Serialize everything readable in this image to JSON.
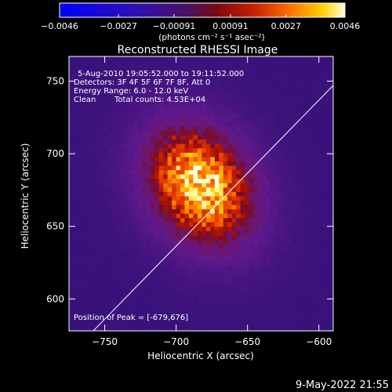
{
  "chart_data": {
    "type": "heatmap",
    "title": "Reconstructed RHESSI Image",
    "xlabel": "Heliocentric X (arcsec)",
    "ylabel": "Heliocentric Y (arcsec)",
    "xlim": [
      -775,
      -590
    ],
    "ylim": [
      578,
      767
    ],
    "x_ticks": [
      -750,
      -700,
      -650,
      -600
    ],
    "y_ticks": [
      600,
      650,
      700,
      750
    ],
    "x_tick_labels": [
      "−750",
      "−700",
      "−650",
      "−600"
    ],
    "y_tick_labels": [
      "600",
      "650",
      "700",
      "750"
    ],
    "colorbar": {
      "min": -0.0046,
      "max": 0.0046,
      "ticks": [
        -0.0046,
        -0.0027,
        -0.00091,
        0.00091,
        0.0027,
        0.0046
      ],
      "tick_labels": [
        "−0.0046",
        "−0.0027",
        "−0.00091",
        "0.00091",
        "0.0027",
        "0.0046"
      ],
      "unit_label": "(photons cm⁻² s⁻¹ asec⁻²)"
    },
    "annotations": {
      "time": "5-Aug-2010 19:05:52.000 to 19:11:52.000",
      "detectors": "Detectors: 3F 4F 5F 6F 7F 8F, Att 0",
      "energy": "Energy Range: 6.0 - 12.0 keV",
      "clean": "Clean",
      "counts": "Total counts: 4.53E+04",
      "peak": "Position of Peak = [-679,676]"
    },
    "peak": [
      -679,
      676
    ],
    "source": {
      "center": [
        -683,
        678
      ],
      "sigma_x": 26,
      "sigma_y": 34,
      "angle_deg": -35,
      "peak_value": 0.0046
    },
    "limb_line": {
      "x": [
        -758,
        -590
      ],
      "y": [
        578,
        747
      ]
    },
    "footer": "9-May-2022 21:55"
  }
}
